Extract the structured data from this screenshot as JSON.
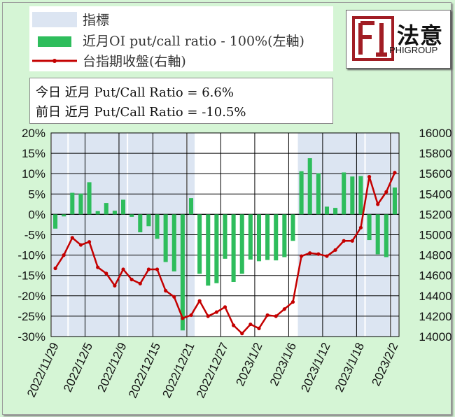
{
  "legend": {
    "items": [
      {
        "label": "指標",
        "color": "#dce5f2",
        "kind": "box"
      },
      {
        "label": "近月OI put/call ratio - 100%(左軸)",
        "color": "#2ebd5c",
        "kind": "bar"
      },
      {
        "label": "台指期收盤(右軸)",
        "color": "#c40000",
        "kind": "line"
      }
    ]
  },
  "info": {
    "today": "今日 近月 Put/Call Ratio = 6.6%",
    "prev": "前日 近月 Put/Call Ratio = -10.5%"
  },
  "logo": {
    "zh": "法意",
    "en": "PHIGROUP",
    "glyph": "FI-logo-icon",
    "color": "#a11d24"
  },
  "chart_data": {
    "type": "bar",
    "x": [
      "2022/11/29",
      "2022/11/30",
      "2022/12/1",
      "2022/12/2",
      "2022/12/5",
      "2022/12/6",
      "2022/12/7",
      "2022/12/8",
      "2022/12/9",
      "2022/12/12",
      "2022/12/13",
      "2022/12/14",
      "2022/12/15",
      "2022/12/16",
      "2022/12/19",
      "2022/12/20",
      "2022/12/21",
      "2022/12/22",
      "2022/12/23",
      "2022/12/26",
      "2022/12/27",
      "2022/12/28",
      "2022/12/29",
      "2022/12/30",
      "2023/1/2",
      "2023/1/3",
      "2023/1/4",
      "2023/1/5",
      "2023/1/6",
      "2023/1/9",
      "2023/1/10",
      "2023/1/11",
      "2023/1/12",
      "2023/1/13",
      "2023/1/16",
      "2023/1/17",
      "2023/1/18",
      "2023/1/30",
      "2023/1/31",
      "2023/2/1",
      "2023/2/2"
    ],
    "x_tick_labels": [
      "2022/11/29",
      "2022/12/5",
      "2022/12/9",
      "2022/12/15",
      "2022/12/21",
      "2022/12/27",
      "2023/1/2",
      "2023/1/6",
      "2023/1/12",
      "2023/1/18",
      "2023/2/2"
    ],
    "series": [
      {
        "name": "近月OI put/call ratio - 100%(左軸)",
        "axis": "left",
        "type": "bar",
        "color": "#2ebd5c",
        "values": [
          -3.5,
          -0.5,
          5.3,
          5.1,
          7.9,
          0.8,
          2.8,
          0.9,
          3.6,
          -0.6,
          -4.4,
          -2.9,
          -6.0,
          -11.7,
          -14.0,
          -28.5,
          4.0,
          -14.6,
          -17.5,
          -16.9,
          -10.9,
          -16.6,
          -14.6,
          -11.1,
          -11.5,
          -11.2,
          -11.3,
          -10.5,
          -6.5,
          10.6,
          13.8,
          10.1,
          1.9,
          1.6,
          10.3,
          9.3,
          9.4,
          -6.3,
          -9.8,
          -10.5,
          6.6
        ]
      },
      {
        "name": "台指期收盤(右軸)",
        "axis": "right",
        "type": "line",
        "color": "#c40000",
        "values": [
          14670,
          14800,
          14970,
          14900,
          14930,
          14680,
          14620,
          14500,
          14660,
          14560,
          14520,
          14660,
          14660,
          14450,
          14390,
          14180,
          14210,
          14350,
          14200,
          14240,
          14290,
          14110,
          14030,
          14120,
          14080,
          14210,
          14200,
          14270,
          14340,
          14790,
          14820,
          14810,
          14790,
          14850,
          14940,
          14940,
          15070,
          15570,
          15300,
          15420,
          15610
        ]
      }
    ],
    "indicator": {
      "name": "指標",
      "color": "#dce5f2",
      "shaded_ranges": [
        [
          0,
          1
        ],
        [
          2,
          8
        ],
        [
          9,
          15
        ],
        [
          16,
          16
        ],
        [
          29,
          36
        ],
        [
          37,
          39
        ],
        [
          40,
          40
        ]
      ]
    },
    "y_left": {
      "min": -30,
      "max": 20,
      "step": 5,
      "format": "percent"
    },
    "y_right": {
      "min": 14000,
      "max": 16000,
      "step": 200
    },
    "grid": true,
    "legend_position": "top-left"
  }
}
